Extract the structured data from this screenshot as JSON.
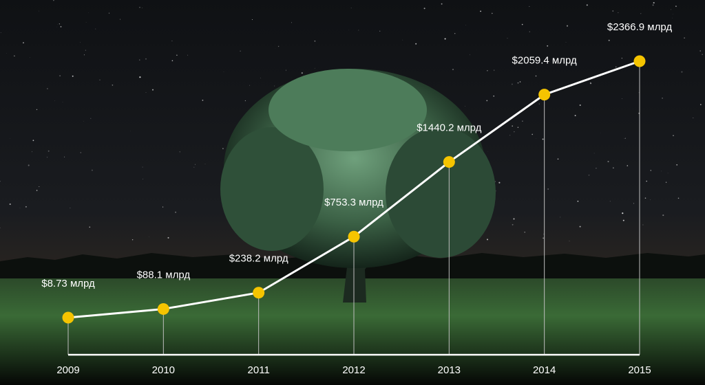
{
  "chart_data": {
    "type": "line",
    "title": "",
    "xlabel": "",
    "ylabel": "",
    "x": [
      "2009",
      "2010",
      "2011",
      "2012",
      "2013",
      "2014",
      "2015"
    ],
    "values": [
      8.73,
      88.1,
      238.2,
      753.3,
      1440.2,
      2059.4,
      2366.9
    ],
    "labels": [
      "$8.73 млрд",
      "$88.1 млрд",
      "$238.2 млрд",
      "$753.3 млрд",
      "$1440.2 млрд",
      "$2059.4 млрд",
      "$2366.9 млрд"
    ],
    "grid": false,
    "legend": "none",
    "colors": {
      "line": "#ffffff",
      "marker": "#f5c400",
      "drop_line": "#bfbfbf",
      "text": "#ffffff",
      "sky": "#14161a",
      "foliage": "#3c6a4c",
      "field": "#2f5a30"
    }
  }
}
